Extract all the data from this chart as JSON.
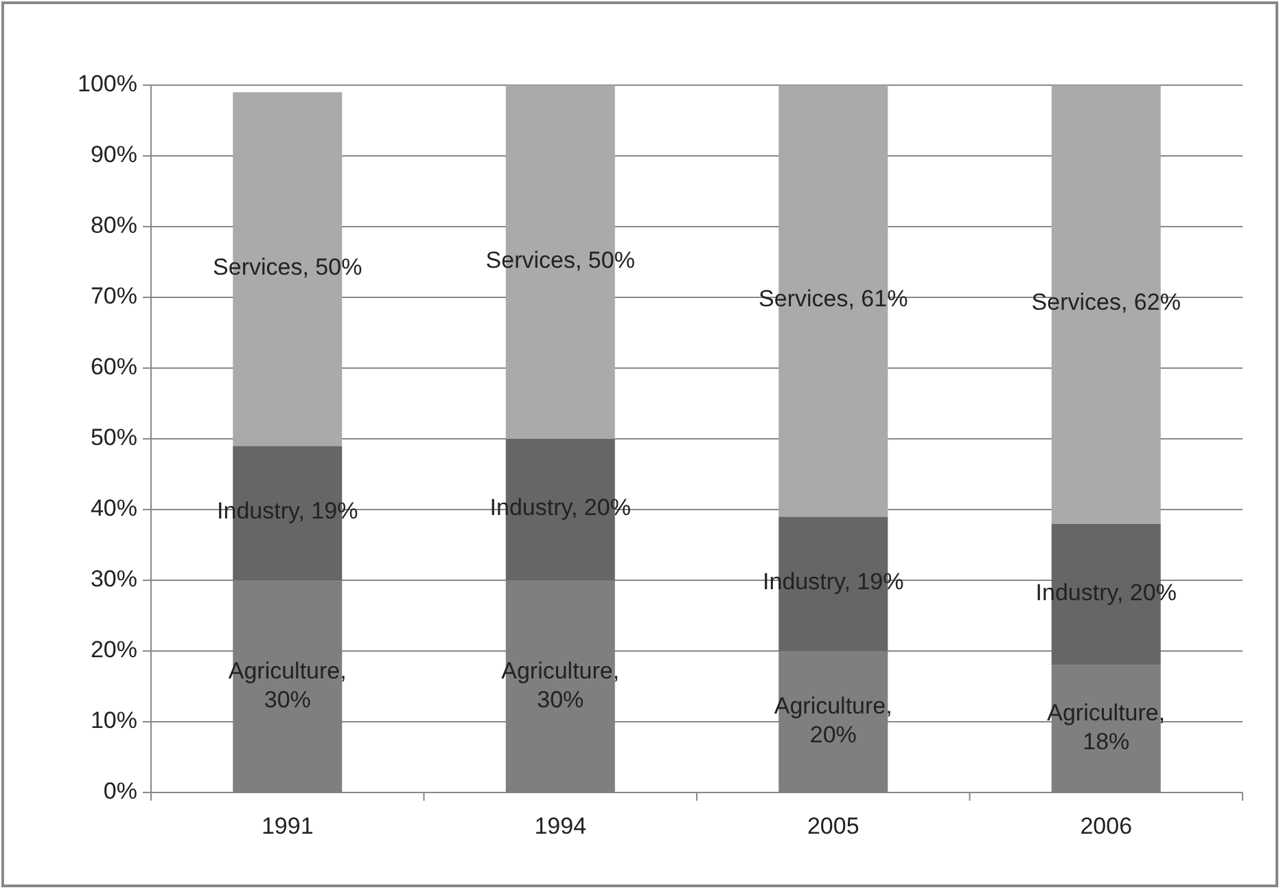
{
  "chart_data": {
    "type": "bar",
    "stacked": true,
    "categories": [
      "1991",
      "1994",
      "2005",
      "2006"
    ],
    "series": [
      {
        "color": "#7f7f7f",
        "values": [
          30,
          30,
          20,
          18
        ],
        "value_labels": [
          "Agriculture, 30%",
          "Agriculture, 30%",
          "Agriculture, 20%",
          "Agriculture, 18%"
        ]
      },
      {
        "color": "#666666",
        "values": [
          19,
          20,
          19,
          20
        ],
        "value_labels": [
          "Industry, 19%",
          "Industry, 20%",
          "Industry, 19%",
          "Industry, 20%"
        ]
      },
      {
        "color": "#aaaaaa",
        "values": [
          50,
          50,
          61,
          62
        ],
        "value_labels": [
          "Services, 50%",
          "Services, 50%",
          "Services, 61%",
          "Services, 62%"
        ]
      }
    ],
    "ylim": [
      0,
      100
    ],
    "yticks": [
      {
        "value": 0,
        "label": "0%"
      },
      {
        "value": 10,
        "label": "10%"
      },
      {
        "value": 20,
        "label": "20%"
      },
      {
        "value": 30,
        "label": "30%"
      },
      {
        "value": 40,
        "label": "40%"
      },
      {
        "value": 50,
        "label": "50%"
      },
      {
        "value": 60,
        "label": "60%"
      },
      {
        "value": 70,
        "label": "70%"
      },
      {
        "value": 80,
        "label": "80%"
      },
      {
        "value": 90,
        "label": "90%"
      },
      {
        "value": 100,
        "label": "100%"
      }
    ],
    "grid": "y",
    "legend": false
  }
}
